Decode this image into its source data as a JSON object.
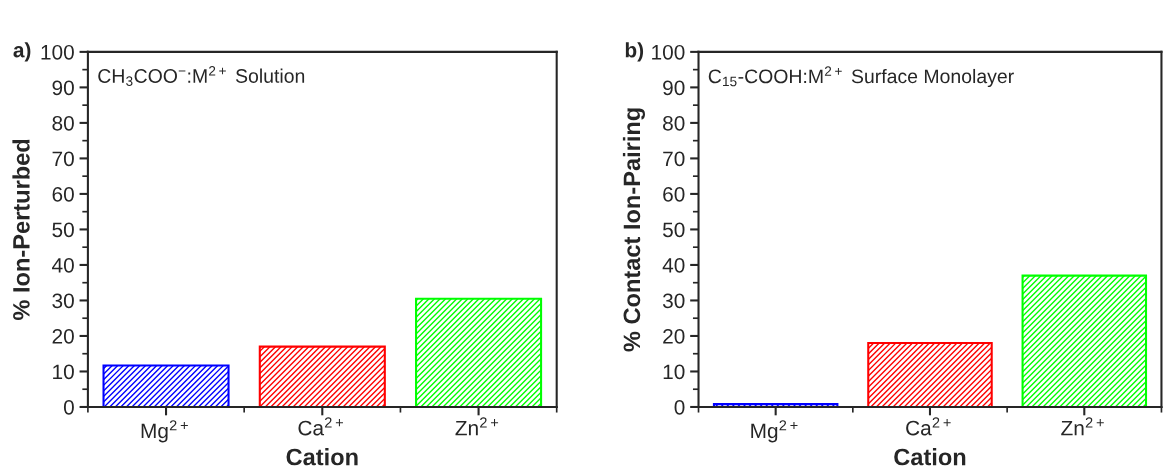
{
  "chart_data": [
    {
      "type": "bar",
      "title": "a)",
      "categories": [
        "Mg$^{2+}$",
        "Ca$^{2+}$",
        "Zn$^{2+}$"
      ],
      "values": [
        11.7,
        17,
        30.5
      ],
      "colors": [
        "#0000ff",
        "#ff0000",
        "#00ff00"
      ],
      "xlabel": "Cation",
      "ylabel": "% Ion-Perturbed",
      "ylim": [
        0,
        100
      ],
      "yticks": [
        0,
        10,
        20,
        30,
        40,
        50,
        60,
        70,
        80,
        90,
        100
      ],
      "annotations": [
        "CH$_{3}$COO$^{−}$:M$^{2+}$ Solution"
      ],
      "grid": false,
      "legend": false
    },
    {
      "type": "bar",
      "title": "b)",
      "categories": [
        "Mg$^{2+}$",
        "Ca$^{2+}$",
        "Zn$^{2+}$"
      ],
      "values": [
        0.8,
        18,
        37
      ],
      "colors": [
        "#0000ff",
        "#ff0000",
        "#00ff00"
      ],
      "xlabel": "Cation",
      "ylabel": "% Contact Ion-Pairing",
      "ylim": [
        0,
        100
      ],
      "yticks": [
        0,
        10,
        20,
        30,
        40,
        50,
        60,
        70,
        80,
        90,
        100
      ],
      "annotations": [
        "C$_{15}$-COOH:M$^{2+}$ Surface Monolayer"
      ],
      "grid": false,
      "legend": false
    }
  ]
}
